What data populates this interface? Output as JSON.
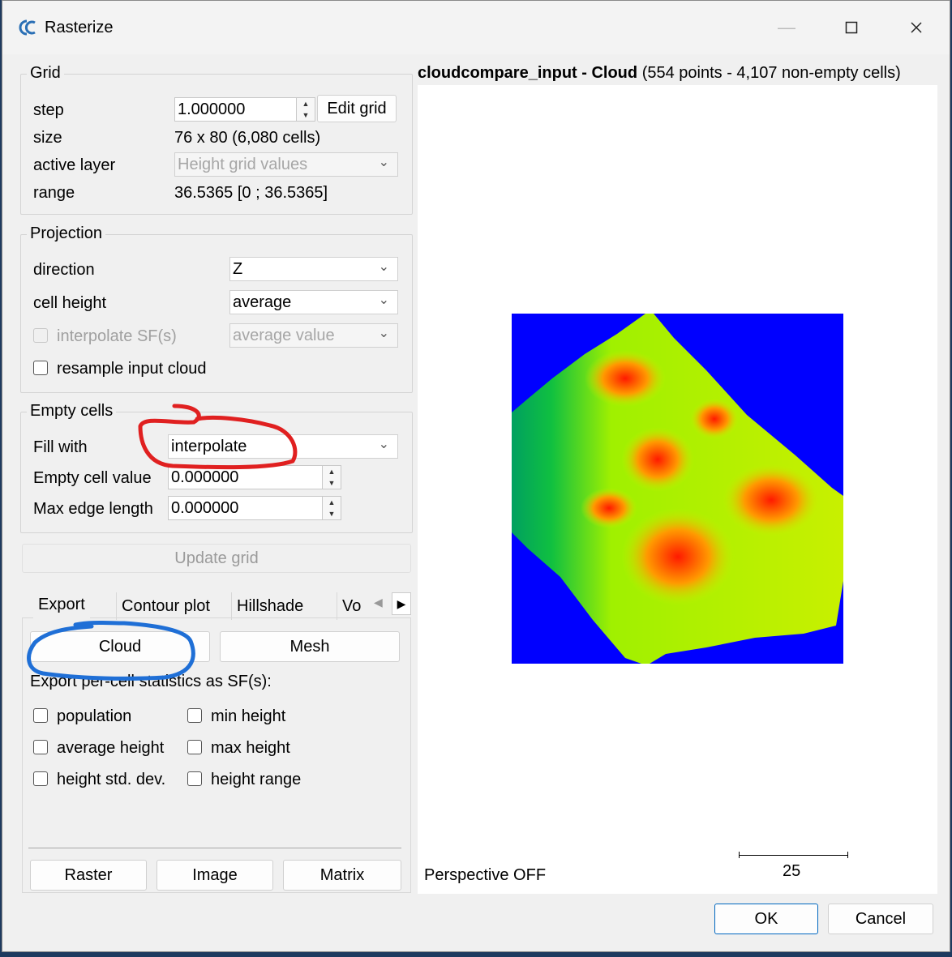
{
  "window": {
    "title": "Rasterize",
    "app_icon": "cloudcompare-logo-icon",
    "controls": [
      "minimize-icon",
      "maximize-icon",
      "close-icon"
    ]
  },
  "grid": {
    "group_title": "Grid",
    "step_label": "step",
    "step_value": "1.000000",
    "edit_grid_label": "Edit grid",
    "size_label": "size",
    "size_value": "76 x 80 (6,080 cells)",
    "active_layer_label": "active layer",
    "active_layer_value": "Height grid values",
    "range_label": "range",
    "range_value": "36.5365 [0 ; 36.5365]"
  },
  "projection": {
    "group_title": "Projection",
    "direction_label": "direction",
    "direction_value": "Z",
    "cell_height_label": "cell height",
    "cell_height_value": "average",
    "interpolate_sf_label": "interpolate SF(s)",
    "interpolate_sf_value": "average value",
    "resample_label": "resample input cloud"
  },
  "empty_cells": {
    "group_title": "Empty cells",
    "fill_with_label": "Fill with",
    "fill_with_value": "interpolate",
    "empty_cell_value_label": "Empty cell value",
    "empty_cell_value": "0.000000",
    "max_edge_label": "Max edge length",
    "max_edge_value": "0.000000"
  },
  "update_grid_label": "Update grid",
  "tabs": {
    "export": "Export",
    "contour": "Contour plot",
    "hillshade": "Hillshade",
    "volume": "Vo"
  },
  "export": {
    "cloud_label": "Cloud",
    "mesh_label": "Mesh",
    "stats_caption": "Export per-cell statistics as SF(s):",
    "stats": {
      "population": "population",
      "min_height": "min height",
      "average_height": "average height",
      "max_height": "max height",
      "height_std": "height std. dev.",
      "height_range": "height range"
    },
    "raster_label": "Raster",
    "image_label": "Image",
    "matrix_label": "Matrix"
  },
  "viewport": {
    "cloud_name": "cloudcompare_input - Cloud",
    "cloud_info": "(554 points - 4,107 non-empty cells)",
    "perspective_label": "Perspective OFF",
    "scale_label": "25",
    "colors": {
      "background": "#0000ff",
      "low": "#00a050",
      "mid": "#b5f000",
      "high": "#ff2a00"
    }
  },
  "annotations": {
    "red_circle_color": "#e02020",
    "blue_circle_color": "#1f6fd6"
  },
  "dialog": {
    "ok_label": "OK",
    "cancel_label": "Cancel"
  }
}
